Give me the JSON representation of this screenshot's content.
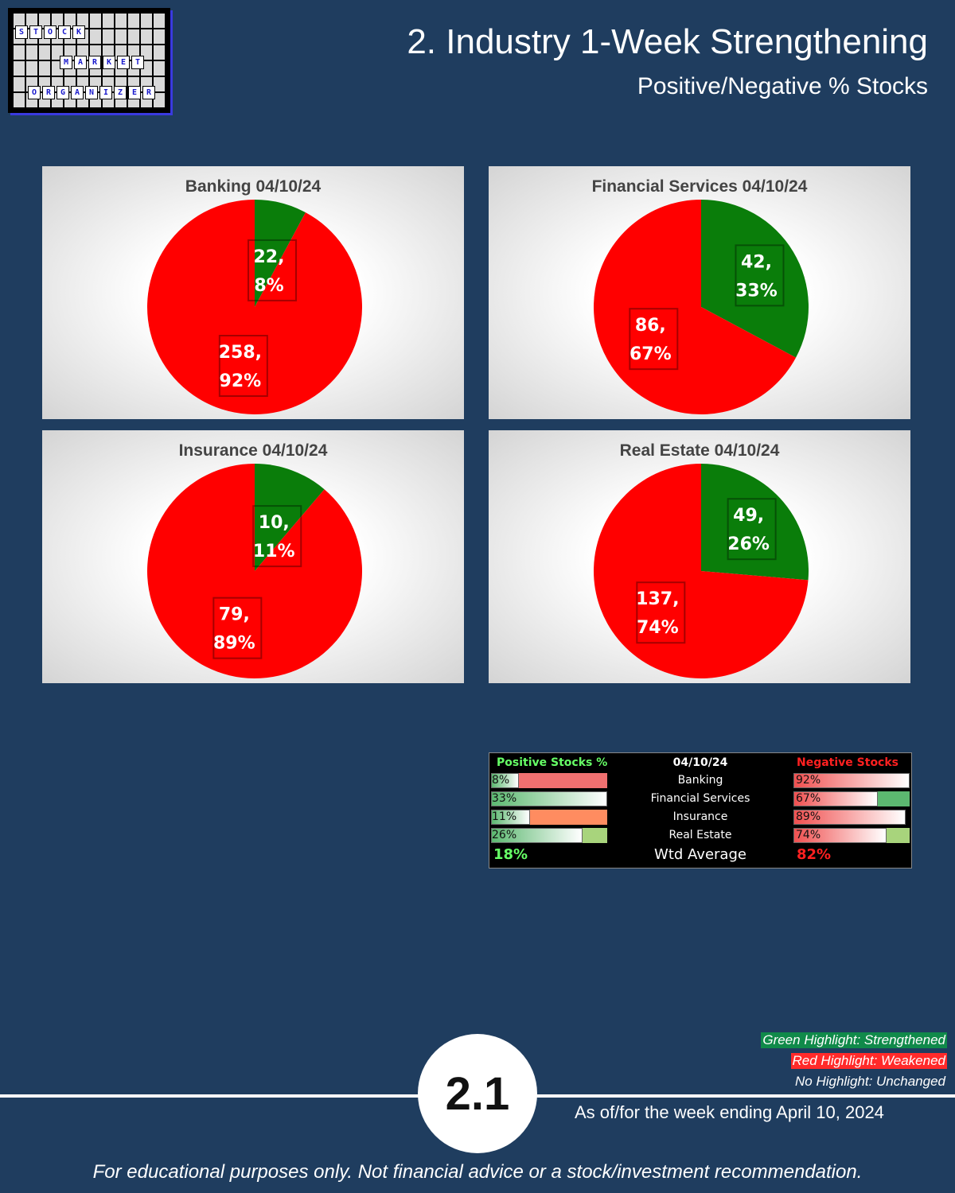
{
  "logo": {
    "row1": [
      "S",
      "T",
      "O",
      "C",
      "K"
    ],
    "row2": [
      "M",
      "A",
      "R",
      "K",
      "E",
      "T"
    ],
    "row3": [
      "O",
      "R",
      "G",
      "A",
      "N",
      "I",
      "Z",
      "E",
      "R"
    ]
  },
  "header": {
    "title": "2. Industry 1-Week Strengthening",
    "subtitle": "Positive/Negative % Stocks"
  },
  "colors": {
    "positive": "#0a7d0a",
    "negative": "#ff0000",
    "background": "#1f3d5f"
  },
  "chart_data": [
    {
      "type": "pie",
      "title": "Banking 04/10/24",
      "slices": [
        {
          "label": "Positive",
          "value": 22,
          "percent": 8,
          "text1": "22,",
          "text2": "8%"
        },
        {
          "label": "Negative",
          "value": 258,
          "percent": 92,
          "text1": "258,",
          "text2": "92%"
        }
      ]
    },
    {
      "type": "pie",
      "title": "Financial Services 04/10/24",
      "slices": [
        {
          "label": "Positive",
          "value": 42,
          "percent": 33,
          "text1": "42,",
          "text2": "33%"
        },
        {
          "label": "Negative",
          "value": 86,
          "percent": 67,
          "text1": "86,",
          "text2": "67%"
        }
      ]
    },
    {
      "type": "pie",
      "title": "Insurance 04/10/24",
      "slices": [
        {
          "label": "Positive",
          "value": 10,
          "percent": 11,
          "text1": "10,",
          "text2": "11%"
        },
        {
          "label": "Negative",
          "value": 79,
          "percent": 89,
          "text1": "79,",
          "text2": "89%"
        }
      ]
    },
    {
      "type": "pie",
      "title": "Real Estate 04/10/24",
      "slices": [
        {
          "label": "Positive",
          "value": 49,
          "percent": 26,
          "text1": "49,",
          "text2": "26%"
        },
        {
          "label": "Negative",
          "value": 137,
          "percent": 74,
          "text1": "137,",
          "text2": "74%"
        }
      ]
    }
  ],
  "table": {
    "header_positive": "Positive Stocks %",
    "header_date": "04/10/24",
    "header_negative": "Negative Stocks %",
    "rows": [
      {
        "industry": "Banking",
        "pos": 8,
        "pos_text": "8%",
        "neg": 92,
        "neg_text": "92%",
        "pos_hl": "red",
        "neg_hl": "none"
      },
      {
        "industry": "Financial Services",
        "pos": 33,
        "pos_text": "33%",
        "neg": 67,
        "neg_text": "67%",
        "pos_hl": "none",
        "neg_hl": "green"
      },
      {
        "industry": "Insurance",
        "pos": 11,
        "pos_text": "11%",
        "neg": 89,
        "neg_text": "89%",
        "pos_hl": "orange",
        "neg_hl": "none"
      },
      {
        "industry": "Real Estate",
        "pos": 26,
        "pos_text": "26%",
        "neg": 74,
        "neg_text": "74%",
        "pos_hl": "lightgreen",
        "neg_hl": "lightgreen"
      }
    ],
    "avg_label": "Wtd Average",
    "avg_pos": "18%",
    "avg_neg": "82%"
  },
  "legend": {
    "green": "Green Highlight: Strengthened",
    "red": "Red Highlight: Weakened",
    "none": "No Highlight: Unchanged"
  },
  "badge": "2.1",
  "as_of": "As of/for the week ending April 10, 2024",
  "disclaimer": "For educational purposes only. Not financial advice or a stock/investment recommendation."
}
